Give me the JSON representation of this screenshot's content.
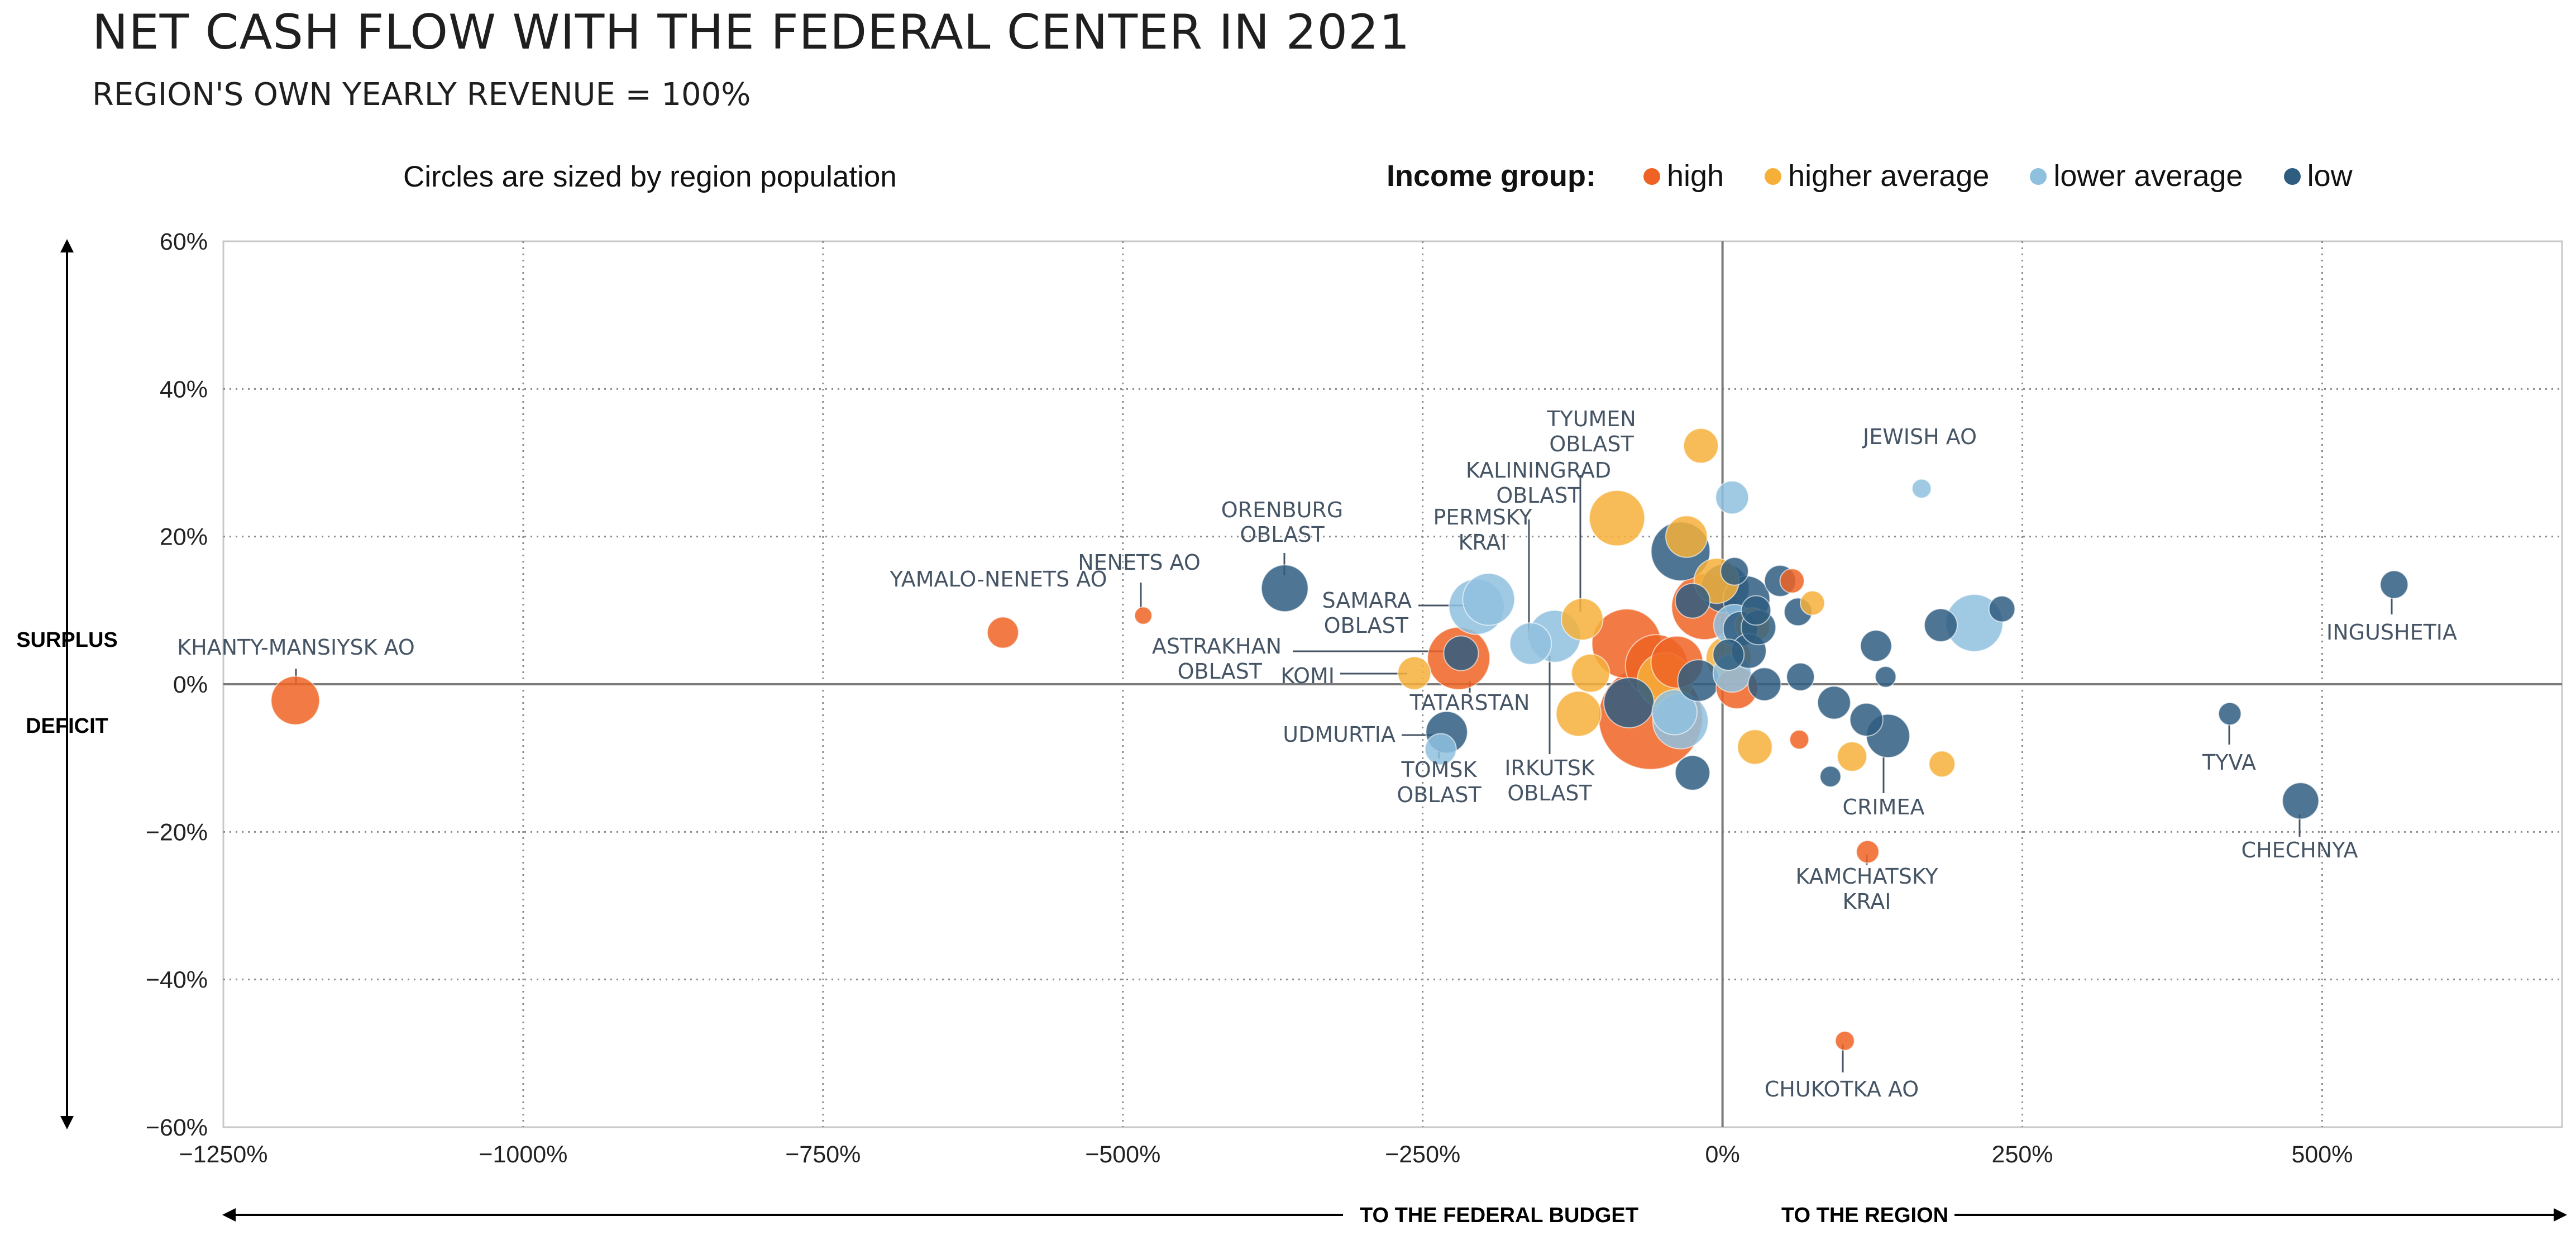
{
  "header": {
    "title": "NET CASH FLOW WITH THE FEDERAL CENTER IN 2021",
    "subtitle": "REGION'S OWN YEARLY REVENUE = 100%",
    "size_note": "Circles are sized by region population"
  },
  "legend": {
    "title": "Income group:",
    "items": [
      {
        "key": "high",
        "label": "high",
        "color": "#ee6325"
      },
      {
        "key": "higher_average",
        "label": "higher average",
        "color": "#f6b03a"
      },
      {
        "key": "lower_average",
        "label": "lower average",
        "color": "#8fc1df"
      },
      {
        "key": "low",
        "label": "low",
        "color": "#2f5d80"
      }
    ]
  },
  "axis_labels": {
    "surplus": "SURPLUS",
    "deficit": "DEFICIT",
    "to_federal": "TO THE FEDERAL BUDGET",
    "to_region": "TO THE REGION"
  },
  "chart_data": {
    "type": "scatter",
    "title": "NET CASH FLOW WITH THE FEDERAL CENTER IN 2021",
    "subtitle": "REGION'S OWN YEARLY REVENUE = 100%",
    "x_ticks": [
      {
        "v": -1250,
        "label": "−1250%"
      },
      {
        "v": -1000,
        "label": "−1000%"
      },
      {
        "v": -750,
        "label": "−750%"
      },
      {
        "v": -500,
        "label": "−500%"
      },
      {
        "v": -250,
        "label": "−250%"
      },
      {
        "v": 0,
        "label": "0%"
      },
      {
        "v": 250,
        "label": "250%"
      },
      {
        "v": 500,
        "label": "500%"
      }
    ],
    "y_ticks": [
      {
        "v": 60,
        "label": "60%"
      },
      {
        "v": 40,
        "label": "40%"
      },
      {
        "v": 20,
        "label": "20%"
      },
      {
        "v": 0,
        "label": "0%"
      },
      {
        "v": -20,
        "label": "−20%"
      },
      {
        "v": -40,
        "label": "−40%"
      },
      {
        "v": -60,
        "label": "−60%"
      }
    ],
    "xlim": [
      -1250,
      700
    ],
    "ylim": [
      -60,
      60
    ],
    "grid": true,
    "points": [
      {
        "x": -1190,
        "y": -2.2,
        "group": "high",
        "size": 1.4,
        "label": "KHANTY-MANSIYSK AO"
      },
      {
        "x": -600,
        "y": 7,
        "group": "high",
        "size": 0.9,
        "label": "YAMALO-NENETS AO"
      },
      {
        "x": -483,
        "y": 9.3,
        "group": "high",
        "size": 0.5,
        "label": "NENETS AO"
      },
      {
        "x": -365,
        "y": 13,
        "group": "low",
        "size": 1.35,
        "label": "ORENBURG OBLAST"
      },
      {
        "x": -257,
        "y": 1.5,
        "group": "higher_average",
        "size": 0.95,
        "label": "KOMI"
      },
      {
        "x": -220,
        "y": 3.5,
        "group": "high",
        "size": 1.8,
        "label": "TATARSTAN"
      },
      {
        "x": -230,
        "y": -6.5,
        "group": "low",
        "size": 1.2,
        "label": "UDMURTIA"
      },
      {
        "x": -235,
        "y": -8.8,
        "group": "lower_average",
        "size": 0.9,
        "label": "TOMSK OBLAST"
      },
      {
        "x": -195,
        "y": 11.5,
        "group": "lower_average",
        "size": 1.5,
        "label": ""
      },
      {
        "x": -205,
        "y": 10.5,
        "group": "lower_average",
        "size": 1.6,
        "label": "SAMARA OBLAST"
      },
      {
        "x": -160,
        "y": 5.5,
        "group": "lower_average",
        "size": 1.2,
        "label": "PERMSKY KRAI"
      },
      {
        "x": -140,
        "y": 6.5,
        "group": "lower_average",
        "size": 1.5,
        "label": "IRKUTSK OBLAST"
      },
      {
        "x": -218,
        "y": 4.2,
        "group": "low",
        "size": 1.0,
        "label": "ASTRAKHAN OBLAST"
      },
      {
        "x": -117,
        "y": 8.8,
        "group": "higher_average",
        "size": 1.2,
        "label": "KALININGRAD OBLAST"
      },
      {
        "x": -110,
        "y": 1.5,
        "group": "higher_average",
        "size": 1.1,
        "label": ""
      },
      {
        "x": -120,
        "y": -4,
        "group": "higher_average",
        "size": 1.3,
        "label": ""
      },
      {
        "x": -88,
        "y": 22.5,
        "group": "higher_average",
        "size": 1.6,
        "label": ""
      },
      {
        "x": -80,
        "y": 5.5,
        "group": "high",
        "size": 2.0,
        "label": ""
      },
      {
        "x": -78,
        "y": -2.5,
        "group": "low",
        "size": 1.45,
        "label": ""
      },
      {
        "x": -60,
        "y": -4.5,
        "group": "high",
        "size": 3.0,
        "label": ""
      },
      {
        "x": -55,
        "y": 2.5,
        "group": "high",
        "size": 1.8,
        "label": ""
      },
      {
        "x": -48,
        "y": 0.5,
        "group": "higher_average",
        "size": 1.6,
        "label": ""
      },
      {
        "x": -38,
        "y": 3,
        "group": "high",
        "size": 1.5,
        "label": ""
      },
      {
        "x": -35,
        "y": -5,
        "group": "lower_average",
        "size": 1.6,
        "label": ""
      },
      {
        "x": -40,
        "y": -3.8,
        "group": "lower_average",
        "size": 1.3,
        "label": ""
      },
      {
        "x": -35,
        "y": 18,
        "group": "low",
        "size": 1.7,
        "label": ""
      },
      {
        "x": -30,
        "y": 20,
        "group": "higher_average",
        "size": 1.2,
        "label": ""
      },
      {
        "x": -25,
        "y": 11.3,
        "group": "low",
        "size": 1.0,
        "label": ""
      },
      {
        "x": -25,
        "y": -12,
        "group": "low",
        "size": 1.0,
        "label": ""
      },
      {
        "x": -18,
        "y": 32.3,
        "group": "higher_average",
        "size": 1.0,
        "label": "TYUMEN OBLAST"
      },
      {
        "x": -20,
        "y": 0.5,
        "group": "low",
        "size": 1.2,
        "label": ""
      },
      {
        "x": -15,
        "y": 10.5,
        "group": "high",
        "size": 1.9,
        "label": ""
      },
      {
        "x": -5,
        "y": 14,
        "group": "higher_average",
        "size": 1.3,
        "label": ""
      },
      {
        "x": 2,
        "y": 13,
        "group": "low",
        "size": 1.4,
        "label": ""
      },
      {
        "x": 5,
        "y": 3.5,
        "group": "higher_average",
        "size": 1.3,
        "label": ""
      },
      {
        "x": 8,
        "y": 25.3,
        "group": "lower_average",
        "size": 0.95,
        "label": ""
      },
      {
        "x": 10,
        "y": 8,
        "group": "lower_average",
        "size": 1.2,
        "label": ""
      },
      {
        "x": 12,
        "y": -0.5,
        "group": "high",
        "size": 1.2,
        "label": ""
      },
      {
        "x": 8,
        "y": 1.5,
        "group": "lower_average",
        "size": 1.1,
        "label": ""
      },
      {
        "x": 10,
        "y": 15.3,
        "group": "low",
        "size": 0.8,
        "label": ""
      },
      {
        "x": 20,
        "y": 11.5,
        "group": "low",
        "size": 1.35,
        "label": ""
      },
      {
        "x": 25,
        "y": 8,
        "group": "higher_average",
        "size": 1.0,
        "label": ""
      },
      {
        "x": 15,
        "y": 7.5,
        "group": "low",
        "size": 1.0,
        "label": ""
      },
      {
        "x": 22,
        "y": 4.5,
        "group": "low",
        "size": 1.0,
        "label": ""
      },
      {
        "x": 5,
        "y": 4,
        "group": "low",
        "size": 0.9,
        "label": ""
      },
      {
        "x": 28,
        "y": 10,
        "group": "low",
        "size": 0.85,
        "label": ""
      },
      {
        "x": 30,
        "y": 7.7,
        "group": "low",
        "size": 1.0,
        "label": ""
      },
      {
        "x": 35,
        "y": 0,
        "group": "low",
        "size": 0.95,
        "label": ""
      },
      {
        "x": 27,
        "y": -8.5,
        "group": "higher_average",
        "size": 1.0,
        "label": ""
      },
      {
        "x": 48,
        "y": 14,
        "group": "low",
        "size": 0.9,
        "label": ""
      },
      {
        "x": 58,
        "y": 14,
        "group": "high",
        "size": 0.7,
        "label": ""
      },
      {
        "x": 63,
        "y": 9.8,
        "group": "low",
        "size": 0.8,
        "label": ""
      },
      {
        "x": 65,
        "y": 1,
        "group": "low",
        "size": 0.8,
        "label": ""
      },
      {
        "x": 64,
        "y": -7.5,
        "group": "high",
        "size": 0.55,
        "label": ""
      },
      {
        "x": 75,
        "y": 11,
        "group": "higher_average",
        "size": 0.7,
        "label": ""
      },
      {
        "x": 93,
        "y": -2.5,
        "group": "low",
        "size": 0.95,
        "label": ""
      },
      {
        "x": 90,
        "y": -12.5,
        "group": "low",
        "size": 0.6,
        "label": ""
      },
      {
        "x": 108,
        "y": -9.8,
        "group": "higher_average",
        "size": 0.85,
        "label": ""
      },
      {
        "x": 120,
        "y": -4.8,
        "group": "low",
        "size": 0.95,
        "label": ""
      },
      {
        "x": 128,
        "y": 5.2,
        "group": "low",
        "size": 0.9,
        "label": ""
      },
      {
        "x": 136,
        "y": 1,
        "group": "low",
        "size": 0.6,
        "label": ""
      },
      {
        "x": 138,
        "y": -7,
        "group": "low",
        "size": 1.25,
        "label": "CRIMEA"
      },
      {
        "x": 121,
        "y": -22.7,
        "group": "high",
        "size": 0.65,
        "label": "KAMCHATSKY KRAI"
      },
      {
        "x": 102,
        "y": -48.3,
        "group": "high",
        "size": 0.55,
        "label": "CHUKOTKA AO"
      },
      {
        "x": 166,
        "y": 26.5,
        "group": "lower_average",
        "size": 0.55,
        "label": "JEWISH AO"
      },
      {
        "x": 182,
        "y": 8,
        "group": "low",
        "size": 0.95,
        "label": ""
      },
      {
        "x": 183,
        "y": -10.8,
        "group": "higher_average",
        "size": 0.75,
        "label": ""
      },
      {
        "x": 210,
        "y": 8.3,
        "group": "lower_average",
        "size": 1.65,
        "label": ""
      },
      {
        "x": 233,
        "y": 10.2,
        "group": "low",
        "size": 0.75,
        "label": ""
      },
      {
        "x": 423,
        "y": -4,
        "group": "low",
        "size": 0.65,
        "label": "TYVA"
      },
      {
        "x": 482,
        "y": -15.8,
        "group": "low",
        "size": 1.05,
        "label": "CHECHNYA"
      },
      {
        "x": 560,
        "y": 13.5,
        "group": "low",
        "size": 0.8,
        "label": "INGUSHETIA"
      }
    ]
  }
}
